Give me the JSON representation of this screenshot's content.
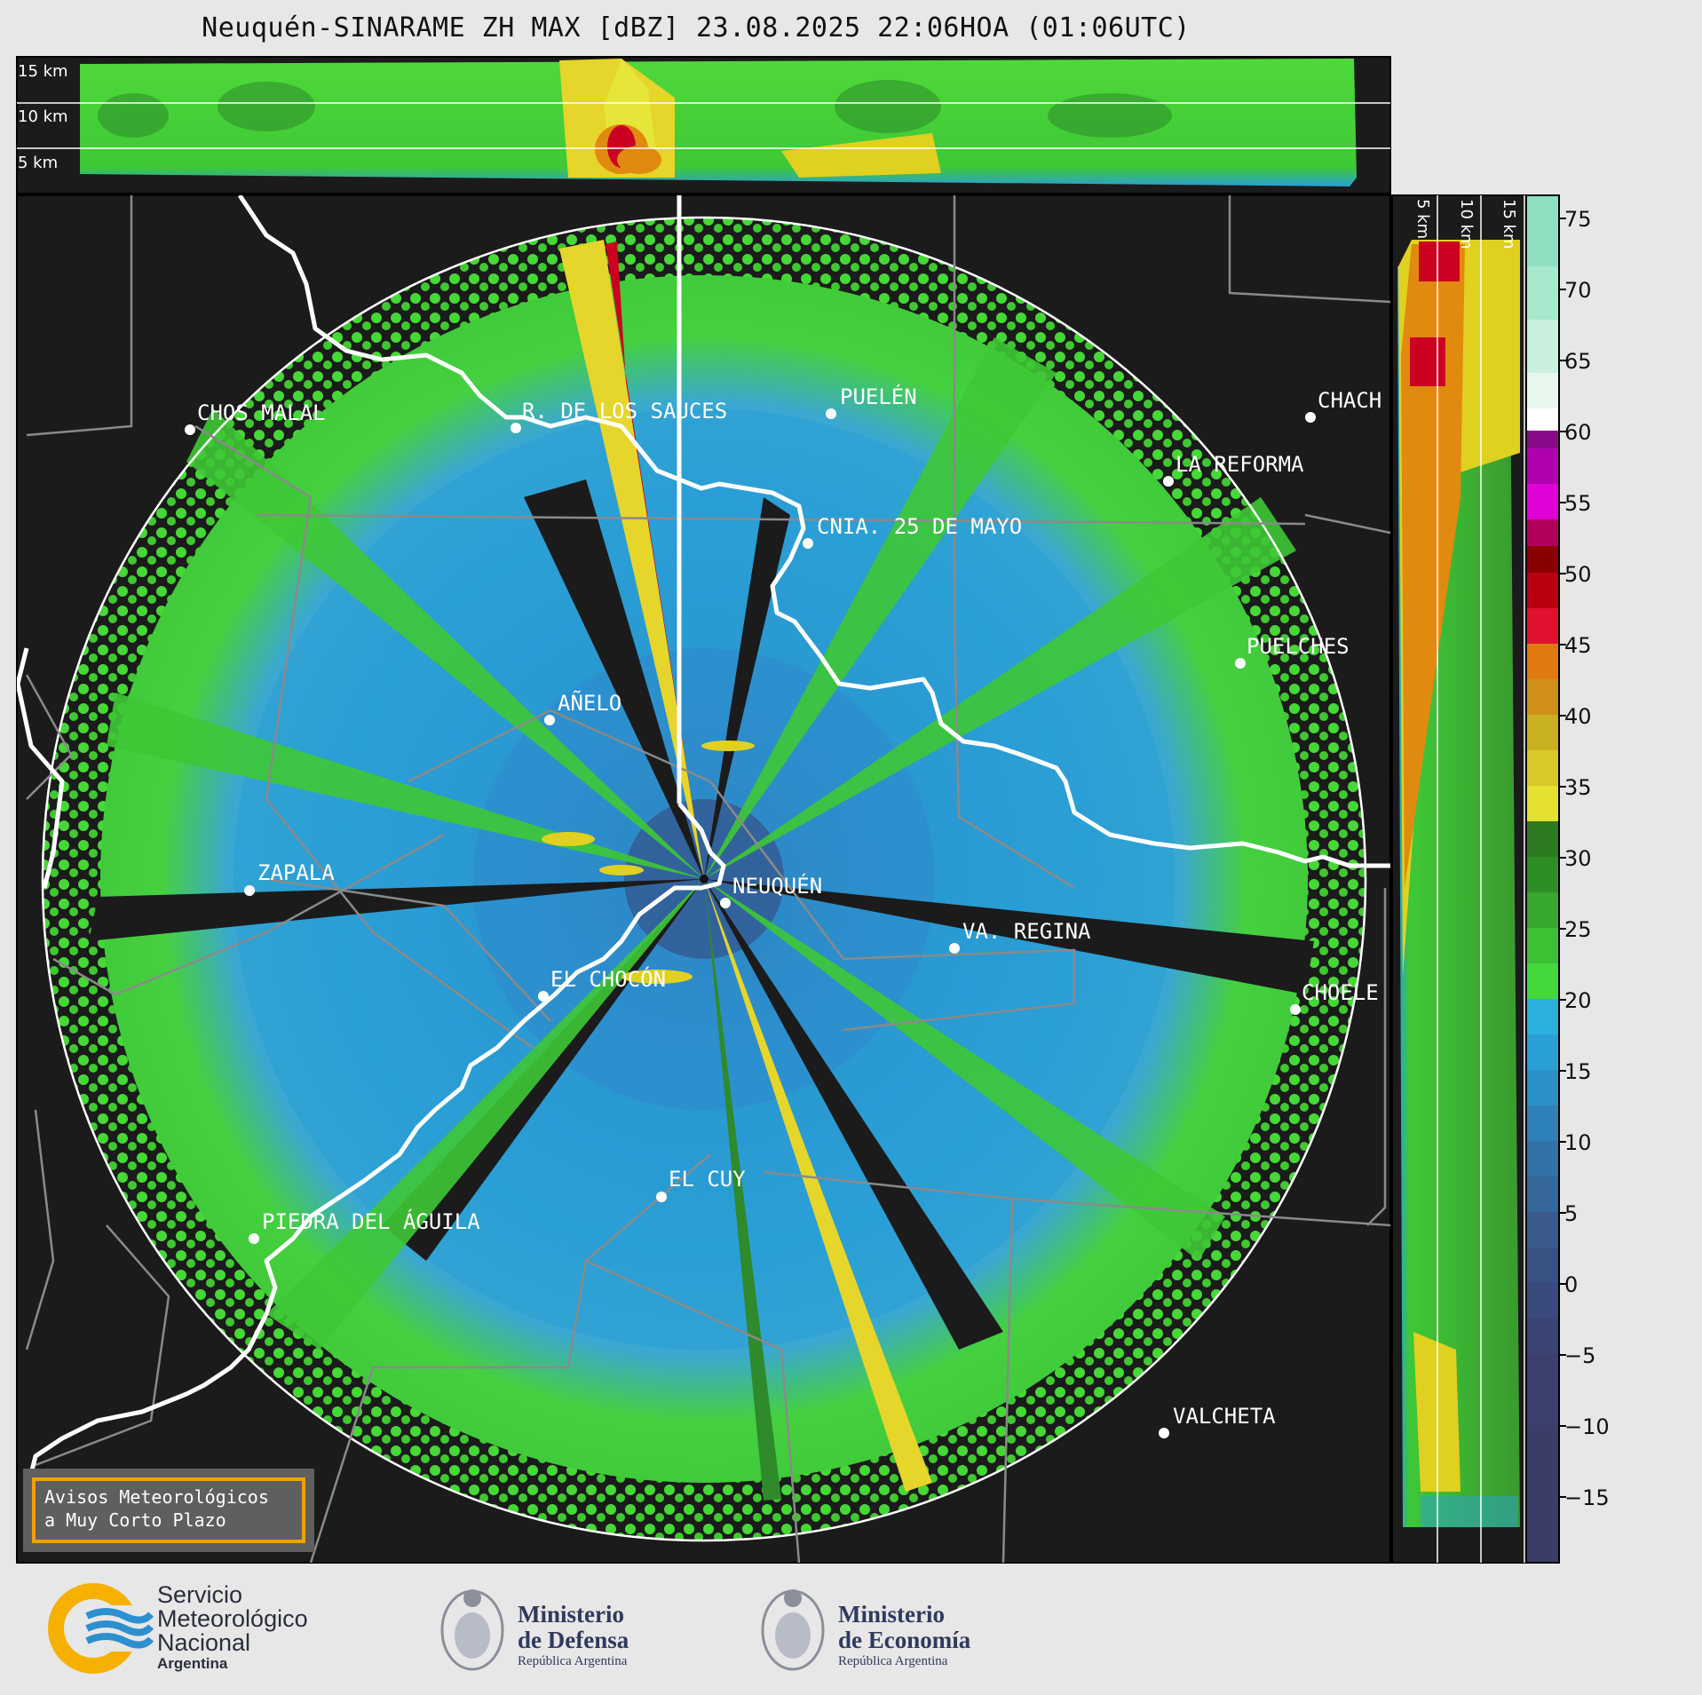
{
  "title": "Neuquén-SINARAME ZH MAX [dBZ] 23.08.2025 22:06HOA (01:06UTC)",
  "top_panel_km_labels": [
    "15 km",
    "10 km",
    "5 km"
  ],
  "side_panel_km_labels": [
    "5 km",
    "10 km",
    "15 km"
  ],
  "cities": [
    {
      "name": "CHOS MALAL"
    },
    {
      "name": "R. DE LOS SAUCES"
    },
    {
      "name": "PUELÉN"
    },
    {
      "name": "CHACH"
    },
    {
      "name": "LA REFORMA"
    },
    {
      "name": "CNIA. 25 DE MAYO"
    },
    {
      "name": "PUELCHES"
    },
    {
      "name": "AÑELO"
    },
    {
      "name": "ZAPALA"
    },
    {
      "name": "NEUQUÉN"
    },
    {
      "name": "VA. REGINA"
    },
    {
      "name": "EL CHOCÓN"
    },
    {
      "name": "CHOELE"
    },
    {
      "name": "EL CUY"
    },
    {
      "name": "PIEDRA DEL ÁGUILA"
    },
    {
      "name": "VALCHETA"
    }
  ],
  "colorbar": {
    "ticks": [
      "75",
      "70",
      "65",
      "60",
      "55",
      "50",
      "45",
      "40",
      "35",
      "30",
      "25",
      "20",
      "15",
      "10",
      "5",
      "0",
      "−5",
      "−10",
      "−15"
    ],
    "colors": {
      "range_-20_-10": "#3b3f6e",
      "range_-10_0": "#3c5a8a",
      "range_0_18": "#2a9fd6",
      "range_18_30": "#2ea82e",
      "range_30_40": "#e0d020",
      "range_40_45": "#e08a10",
      "range_45_55": "#cc0020",
      "range_55_60": "#d000c8",
      "range_60_65": "#ffffff",
      "range_65_75": "#8ee0c0"
    }
  },
  "notice": {
    "line1": "Avisos Meteorológicos",
    "line2": "a Muy Corto Plazo"
  },
  "logos": {
    "smn_line1": "Servicio",
    "smn_line2": "Meteorológico",
    "smn_line3": "Nacional",
    "smn_line4": "Argentina",
    "defensa_line1": "Ministerio",
    "defensa_line2": "de Defensa",
    "defensa_line3": "República Argentina",
    "economia_line1": "Ministerio",
    "economia_line2": "de Economía",
    "economia_line3": "República Argentina"
  }
}
